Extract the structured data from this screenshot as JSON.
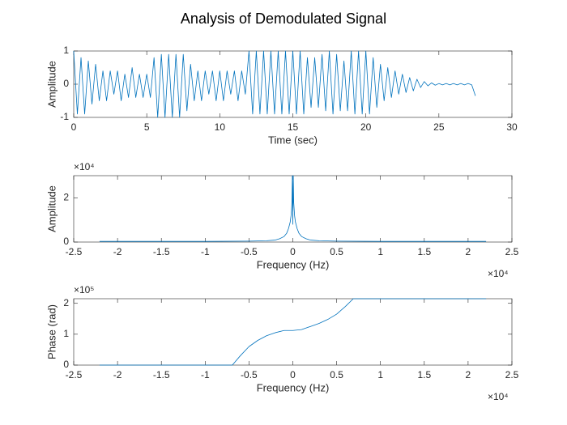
{
  "chart_data": [
    {
      "type": "line",
      "title": "Analysis of Demodulated Signal",
      "xlabel": "Time (sec)",
      "ylabel": "Amplitude",
      "color": "#0072BD",
      "xlim": [
        0,
        30
      ],
      "xticks": [
        0,
        5,
        10,
        15,
        20,
        25,
        30
      ],
      "ylim": [
        -1,
        1
      ],
      "yticks": [
        -1,
        0,
        1
      ],
      "x": [
        0,
        0.25,
        0.5,
        0.75,
        1,
        1.25,
        1.5,
        1.75,
        2,
        2.25,
        2.5,
        2.75,
        3,
        3.25,
        3.5,
        3.75,
        4,
        4.25,
        4.5,
        4.75,
        5,
        5.25,
        5.5,
        5.75,
        6,
        6.25,
        6.5,
        6.75,
        7,
        7.25,
        7.5,
        7.75,
        8,
        8.25,
        8.5,
        8.75,
        9,
        9.25,
        9.5,
        9.75,
        10,
        10.25,
        10.5,
        10.75,
        11,
        11.25,
        11.5,
        11.75,
        12,
        12.25,
        12.5,
        12.75,
        13,
        13.25,
        13.5,
        13.75,
        14,
        14.25,
        14.5,
        14.75,
        15,
        15.25,
        15.5,
        15.75,
        16,
        16.25,
        16.5,
        16.75,
        17,
        17.25,
        17.5,
        17.75,
        18,
        18.25,
        18.5,
        18.75,
        19,
        19.25,
        19.5,
        19.75,
        20,
        20.25,
        20.5,
        20.75,
        21,
        21.25,
        21.5,
        21.75,
        22,
        22.25,
        22.5,
        22.75,
        23,
        23.25,
        23.5,
        23.75,
        24,
        24.25,
        24.5,
        24.75,
        25,
        25.25,
        25.5,
        25.75,
        26,
        26.25,
        26.5,
        26.75,
        27,
        27.25,
        27.5
      ],
      "values": [
        1,
        -0.9,
        0.8,
        -0.9,
        0.7,
        -0.6,
        0.6,
        -0.5,
        0.4,
        -0.5,
        0.4,
        -0.3,
        0.4,
        -0.5,
        0.3,
        -0.4,
        0.5,
        -0.4,
        0.3,
        -0.4,
        0.3,
        -0.4,
        0.8,
        -1,
        0.9,
        -1,
        0.9,
        -1,
        0.9,
        -1,
        0.9,
        -0.8,
        0.6,
        -0.5,
        0.4,
        -0.5,
        0.4,
        -0.3,
        0.4,
        -0.5,
        0.4,
        -0.5,
        0.4,
        -0.3,
        0.4,
        -0.5,
        0.4,
        -0.3,
        1,
        -0.9,
        1,
        -0.9,
        1,
        -0.9,
        1,
        -0.9,
        1,
        -0.9,
        1,
        -0.9,
        1,
        -0.9,
        1,
        -0.9,
        0.8,
        -0.7,
        0.8,
        -0.7,
        0.9,
        -0.8,
        1,
        -0.9,
        0.9,
        -0.8,
        0.7,
        -0.8,
        1,
        -0.9,
        1,
        -0.9,
        1,
        -0.9,
        0.8,
        -0.7,
        0.6,
        -0.5,
        0.5,
        -0.4,
        0.4,
        -0.3,
        0.3,
        -0.25,
        0.2,
        -0.2,
        0.15,
        -0.1,
        0.08,
        -0.05,
        0.04,
        -0.03,
        0.02,
        -0.02,
        0.02,
        -0.02,
        0.02,
        -0.02,
        0.02,
        -0.02,
        0.02,
        -0.02,
        -0.35
      ]
    },
    {
      "type": "line",
      "xlabel": "Frequency (Hz)",
      "ylabel": "Amplitude",
      "color": "#0072BD",
      "x_exponent": "×10⁴",
      "y_exponent": "×10⁴",
      "xlim": [
        -25000,
        25000
      ],
      "xticks": [
        {
          "value": -25000,
          "label": "-2.5"
        },
        {
          "value": -20000,
          "label": "-2"
        },
        {
          "value": -15000,
          "label": "-1.5"
        },
        {
          "value": -10000,
          "label": "-1"
        },
        {
          "value": -5000,
          "label": "-0.5"
        },
        0,
        {
          "value": 5000,
          "label": "0.5"
        },
        {
          "value": 10000,
          "label": "1"
        },
        {
          "value": 15000,
          "label": "1.5"
        },
        {
          "value": 20000,
          "label": "2"
        },
        {
          "value": 25000,
          "label": "2.5"
        }
      ],
      "ylim": [
        0,
        30000
      ],
      "yticks": [
        0,
        {
          "value": 20000,
          "label": "2"
        }
      ],
      "x": [
        -22050,
        -15000,
        -10000,
        -5000,
        -3000,
        -2000,
        -1500,
        -1000,
        -700,
        -500,
        -300,
        -200,
        -100,
        -50,
        0,
        50,
        100,
        200,
        300,
        500,
        700,
        1000,
        1500,
        2000,
        3000,
        5000,
        10000,
        15000,
        22050
      ],
      "values": [
        300,
        300,
        300,
        400,
        600,
        900,
        1500,
        2500,
        4000,
        6000,
        9000,
        12000,
        18000,
        30000,
        8000,
        30000,
        18000,
        12000,
        9000,
        6000,
        4000,
        2500,
        1500,
        900,
        600,
        400,
        300,
        300,
        300
      ]
    },
    {
      "type": "line",
      "xlabel": "Frequency (Hz)",
      "ylabel": "Phase (rad)",
      "color": "#0072BD",
      "x_exponent": "×10⁴",
      "y_exponent": "×10⁵",
      "xlim": [
        -25000,
        25000
      ],
      "xticks": [
        {
          "value": -25000,
          "label": "-2.5"
        },
        {
          "value": -20000,
          "label": "-2"
        },
        {
          "value": -15000,
          "label": "-1.5"
        },
        {
          "value": -10000,
          "label": "-1"
        },
        {
          "value": -5000,
          "label": "-0.5"
        },
        0,
        {
          "value": 5000,
          "label": "0.5"
        },
        {
          "value": 10000,
          "label": "1"
        },
        {
          "value": 15000,
          "label": "1.5"
        },
        {
          "value": 20000,
          "label": "2"
        },
        {
          "value": 25000,
          "label": "2.5"
        }
      ],
      "ylim": [
        0,
        215000
      ],
      "yticks": [
        0,
        {
          "value": 100000,
          "label": "1"
        },
        {
          "value": 200000,
          "label": "2"
        }
      ],
      "x": [
        -22050,
        -6900,
        -6000,
        -5000,
        -4000,
        -3000,
        -2000,
        -1000,
        0,
        1000,
        2000,
        3000,
        4000,
        5000,
        6000,
        6900,
        22050
      ],
      "values": [
        0,
        0,
        30000,
        60000,
        80000,
        95000,
        105000,
        112000,
        112000,
        115000,
        125000,
        135000,
        148000,
        165000,
        190000,
        215000,
        215000
      ]
    }
  ]
}
